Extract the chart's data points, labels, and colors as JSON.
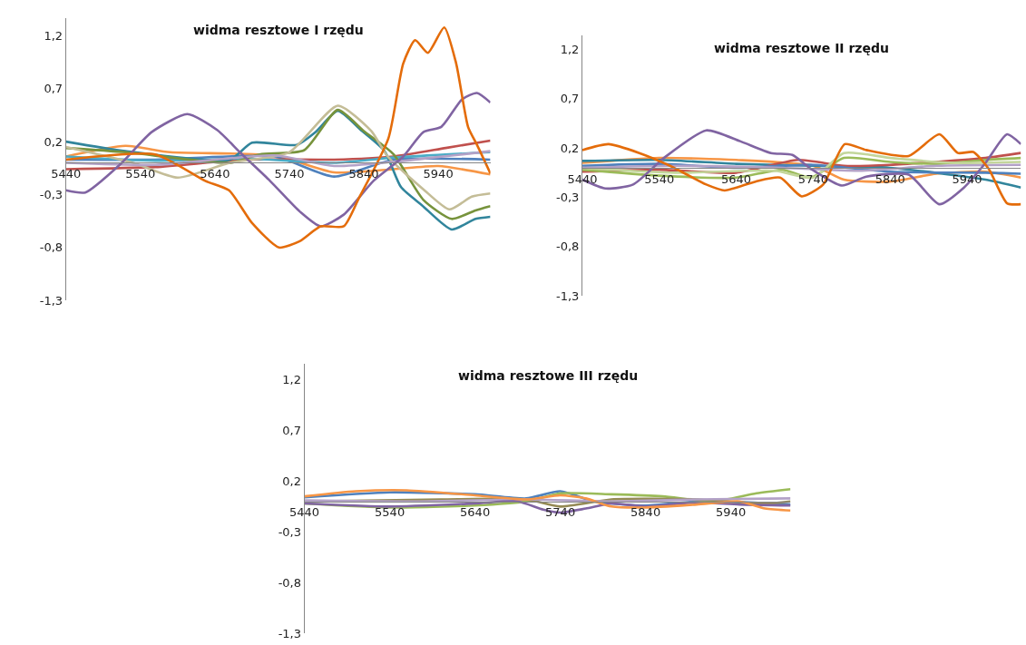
{
  "chart_data": [
    {
      "type": "line",
      "title": "widma resztowe I rzędu",
      "xlim": [
        5440,
        6010
      ],
      "ylim": [
        -1.3,
        1.37
      ],
      "xticks": [
        5440,
        5540,
        5640,
        5740,
        5840,
        5940
      ],
      "yticks": [
        {
          "value": -1.3,
          "label": "-1,3"
        },
        {
          "value": -0.8,
          "label": "-0,8"
        },
        {
          "value": -0.3,
          "label": "-0,3"
        },
        {
          "value": 0.2,
          "label": "0,2"
        },
        {
          "value": 0.7,
          "label": "0,7"
        },
        {
          "value": 1.2,
          "label": "1,2"
        }
      ],
      "series": [
        {
          "color": "#f79646",
          "x": [
            5440,
            5520,
            5580,
            5720,
            5800,
            5880,
            5940,
            6010
          ],
          "values": [
            0.06,
            0.16,
            0.1,
            0.07,
            -0.09,
            -0.06,
            -0.03,
            -0.11
          ]
        },
        {
          "color": "#4f81bd",
          "x": [
            5440,
            5560,
            5720,
            5800,
            5880,
            6010
          ],
          "values": [
            0.03,
            0.03,
            0.06,
            -0.13,
            0.03,
            0.03
          ]
        },
        {
          "color": "#c0504d",
          "x": [
            5440,
            5560,
            5680,
            5800,
            5880,
            5950,
            6010
          ],
          "values": [
            -0.06,
            -0.04,
            0.03,
            0.03,
            0.06,
            0.14,
            0.21
          ]
        },
        {
          "color": "#4bacc6",
          "x": [
            5440,
            5560,
            5680,
            5800,
            5880,
            6010
          ],
          "values": [
            0.06,
            0.02,
            0.04,
            0.0,
            0.05,
            0.1
          ]
        },
        {
          "color": "#31859c",
          "x": [
            5440,
            5520,
            5660,
            5690,
            5750,
            5775,
            5805,
            5836,
            5868,
            5890,
            5918,
            5958,
            5990,
            6010
          ],
          "values": [
            0.2,
            0.11,
            0.03,
            0.19,
            0.17,
            0.29,
            0.49,
            0.31,
            0.11,
            -0.23,
            -0.4,
            -0.63,
            -0.53,
            -0.51
          ]
        },
        {
          "color": "#77933c",
          "x": [
            5440,
            5520,
            5660,
            5700,
            5760,
            5805,
            5840,
            5880,
            5920,
            5958,
            5990,
            6010
          ],
          "values": [
            0.14,
            0.1,
            0.0,
            0.08,
            0.12,
            0.5,
            0.3,
            0.08,
            -0.35,
            -0.53,
            -0.45,
            -0.41
          ]
        },
        {
          "color": "#c4bd97",
          "x": [
            5440,
            5530,
            5590,
            5660,
            5740,
            5805,
            5850,
            5872,
            5920,
            5955,
            5985,
            6010
          ],
          "values": [
            0.15,
            0.0,
            -0.14,
            0.0,
            0.1,
            0.54,
            0.3,
            0.06,
            -0.25,
            -0.44,
            -0.32,
            -0.29
          ]
        },
        {
          "color": "#b3a2c7",
          "x": [
            5440,
            5560,
            5720,
            5800,
            5880,
            6010
          ],
          "values": [
            0.0,
            -0.02,
            0.07,
            -0.03,
            0.01,
            0.11
          ]
        },
        {
          "color": "#8064a2",
          "x": [
            5440,
            5466,
            5515,
            5555,
            5603,
            5643,
            5675,
            5714,
            5754,
            5782,
            5813,
            5853,
            5893,
            5920,
            5944,
            5972,
            5992,
            6010
          ],
          "values": [
            -0.26,
            -0.28,
            0.0,
            0.29,
            0.46,
            0.31,
            0.09,
            -0.17,
            -0.46,
            -0.6,
            -0.49,
            -0.17,
            0.06,
            0.29,
            0.34,
            0.6,
            0.66,
            0.57
          ]
        },
        {
          "color": "#e46c0a",
          "x": [
            5440,
            5560,
            5627,
            5659,
            5690,
            5726,
            5754,
            5782,
            5813,
            5833,
            5873,
            5893,
            5909,
            5926,
            5948,
            5964,
            5980,
            5992,
            6010
          ],
          "values": [
            0.03,
            0.08,
            -0.17,
            -0.26,
            -0.57,
            -0.8,
            -0.74,
            -0.6,
            -0.6,
            -0.34,
            0.23,
            0.94,
            1.16,
            1.04,
            1.28,
            0.94,
            0.34,
            0.17,
            -0.1
          ]
        }
      ]
    },
    {
      "type": "line",
      "title": "widma resztowe II rzędu",
      "xlim": [
        5440,
        6010
      ],
      "ylim": [
        -1.3,
        1.34
      ],
      "xticks": [
        5440,
        5540,
        5640,
        5740,
        5840,
        5940
      ],
      "yticks": [
        {
          "value": -1.3,
          "label": "-1,3"
        },
        {
          "value": -0.8,
          "label": "-0,8"
        },
        {
          "value": -0.3,
          "label": "-0,3"
        },
        {
          "value": 0.2,
          "label": "0,2"
        },
        {
          "value": 0.7,
          "label": "0,7"
        },
        {
          "value": 1.2,
          "label": "1,2"
        }
      ],
      "series": [
        {
          "color": "#f79646",
          "x": [
            5440,
            5540,
            5640,
            5740,
            5780,
            5840,
            5900,
            5964,
            6010
          ],
          "values": [
            0.05,
            0.1,
            0.08,
            0.02,
            -0.12,
            -0.14,
            -0.06,
            -0.04,
            -0.1
          ]
        },
        {
          "color": "#31859c",
          "x": [
            5440,
            5540,
            5640,
            5740,
            5840,
            5964,
            6010
          ],
          "values": [
            0.07,
            0.08,
            0.04,
            0.02,
            0.0,
            -0.12,
            -0.2
          ]
        },
        {
          "color": "#c0504d",
          "x": [
            5440,
            5540,
            5640,
            5720,
            5780,
            5840,
            5964,
            6010
          ],
          "values": [
            -0.04,
            -0.02,
            -0.05,
            0.08,
            0.02,
            0.03,
            0.1,
            0.15
          ]
        },
        {
          "color": "#4f81bd",
          "x": [
            5440,
            5540,
            5640,
            5740,
            5840,
            5964,
            6010
          ],
          "values": [
            0.02,
            0.04,
            0.0,
            0.03,
            -0.04,
            -0.05,
            -0.06
          ]
        },
        {
          "color": "#9bbb59",
          "x": [
            5440,
            5540,
            5640,
            5700,
            5737,
            5780,
            5840,
            5900,
            5964,
            6010
          ],
          "values": [
            -0.02,
            -0.08,
            -0.1,
            -0.02,
            -0.1,
            0.1,
            0.06,
            0.04,
            0.08,
            0.1
          ]
        },
        {
          "color": "#c3d69b",
          "x": [
            5440,
            5560,
            5690,
            5740,
            5780,
            5840,
            5920,
            6010
          ],
          "values": [
            0.0,
            -0.05,
            -0.03,
            -0.1,
            0.15,
            0.1,
            0.05,
            0.06
          ]
        },
        {
          "color": "#b3a2c7",
          "x": [
            5440,
            5560,
            5700,
            5800,
            5900,
            6010
          ],
          "values": [
            0.0,
            0.02,
            0.0,
            -0.03,
            0.02,
            0.03
          ]
        },
        {
          "color": "#8064a2",
          "x": [
            5440,
            5470,
            5506,
            5546,
            5601,
            5645,
            5685,
            5713,
            5737,
            5777,
            5809,
            5864,
            5904,
            5936,
            5964,
            5992,
            6010
          ],
          "values": [
            -0.12,
            -0.21,
            -0.17,
            0.1,
            0.38,
            0.27,
            0.15,
            0.13,
            -0.01,
            -0.18,
            -0.09,
            -0.07,
            -0.37,
            -0.2,
            0.05,
            0.34,
            0.24
          ]
        },
        {
          "color": "#e46c0a",
          "x": [
            5440,
            5474,
            5514,
            5554,
            5601,
            5625,
            5665,
            5697,
            5725,
            5753,
            5781,
            5809,
            5864,
            5904,
            5928,
            5948,
            5968,
            5992,
            6010
          ],
          "values": [
            0.18,
            0.24,
            0.15,
            0.02,
            -0.17,
            -0.23,
            -0.14,
            -0.1,
            -0.29,
            -0.17,
            0.24,
            0.18,
            0.12,
            0.34,
            0.15,
            0.16,
            -0.01,
            -0.36,
            -0.37
          ]
        }
      ]
    },
    {
      "type": "line",
      "title": "widma resztowe III rzędu",
      "xlim": [
        5440,
        6010
      ],
      "ylim": [
        -1.3,
        1.36
      ],
      "xticks": [
        5440,
        5540,
        5640,
        5740,
        5840,
        5940
      ],
      "yticks": [
        {
          "value": -1.3,
          "label": "-1,3"
        },
        {
          "value": -0.8,
          "label": "-0,8"
        },
        {
          "value": -0.3,
          "label": "-0,3"
        },
        {
          "value": 0.2,
          "label": "0,2"
        },
        {
          "value": 0.7,
          "label": "0,7"
        },
        {
          "value": 1.2,
          "label": "1,2"
        }
      ],
      "series": [
        {
          "color": "#4f81bd",
          "x": [
            5440,
            5540,
            5640,
            5700,
            5740,
            5780,
            5840,
            5900,
            5960,
            6010
          ],
          "values": [
            0.04,
            0.09,
            0.07,
            0.03,
            0.1,
            0.0,
            -0.04,
            0.0,
            -0.01,
            -0.03
          ]
        },
        {
          "color": "#9bbb59",
          "x": [
            5440,
            5540,
            5640,
            5700,
            5740,
            5800,
            5860,
            5920,
            5970,
            6010
          ],
          "values": [
            -0.02,
            -0.06,
            -0.04,
            0.0,
            0.08,
            0.07,
            0.05,
            0.0,
            0.08,
            0.12
          ]
        },
        {
          "color": "#948a54",
          "x": [
            5440,
            5600,
            5700,
            5740,
            5800,
            5900,
            5980,
            6010
          ],
          "values": [
            0.0,
            0.02,
            0.02,
            -0.05,
            0.02,
            0.02,
            -0.02,
            0.0
          ]
        },
        {
          "color": "#b3a2c7",
          "x": [
            5440,
            5560,
            5700,
            5800,
            5900,
            6010
          ],
          "values": [
            0.01,
            0.0,
            0.02,
            0.0,
            0.02,
            0.03
          ]
        },
        {
          "color": "#8064a2",
          "x": [
            5440,
            5540,
            5640,
            5690,
            5720,
            5740,
            5770,
            5800,
            5840,
            5900,
            5950,
            6010
          ],
          "values": [
            -0.02,
            -0.05,
            -0.02,
            0.0,
            -0.08,
            -0.11,
            -0.07,
            -0.02,
            -0.05,
            -0.01,
            -0.03,
            -0.04
          ]
        },
        {
          "color": "#f79646",
          "x": [
            5440,
            5500,
            5560,
            5640,
            5700,
            5740,
            5770,
            5800,
            5840,
            5900,
            5950,
            5980,
            6010
          ],
          "values": [
            0.05,
            0.1,
            0.11,
            0.06,
            0.02,
            0.06,
            0.03,
            -0.05,
            -0.06,
            -0.03,
            0.0,
            -0.07,
            -0.09
          ]
        }
      ]
    }
  ]
}
